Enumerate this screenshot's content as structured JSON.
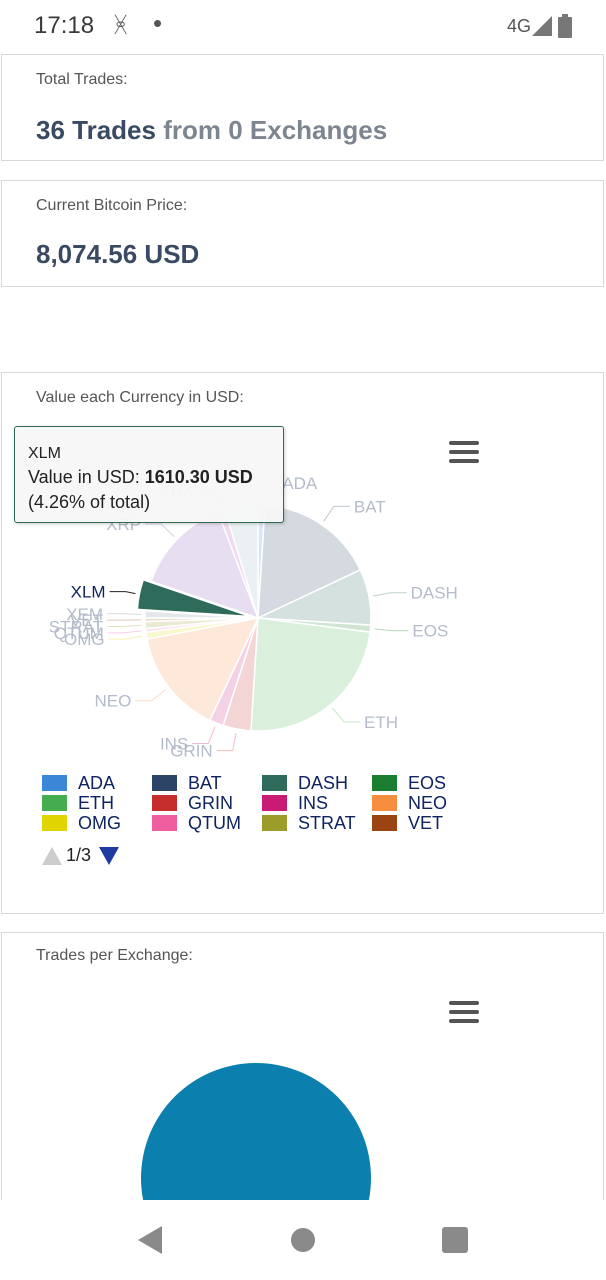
{
  "status_bar": {
    "time": "17:18",
    "network": "4G"
  },
  "total_trades": {
    "label": "Total Trades:",
    "count_text": "36 Trades",
    "exchanges_text": "from 0 Exchanges"
  },
  "bitcoin_price": {
    "label": "Current Bitcoin Price:",
    "value": "8,074.56 USD"
  },
  "currency_chart": {
    "label": "Value each Currency in USD:",
    "tooltip": {
      "title": "XLM",
      "value_prefix": "Value in USD: ",
      "value": "1610.30 USD",
      "percent": "(4.26% of total)"
    },
    "legend": [
      {
        "label": "ADA",
        "color": "#3b86d6"
      },
      {
        "label": "BAT",
        "color": "#2c4466"
      },
      {
        "label": "DASH",
        "color": "#2e6b5b"
      },
      {
        "label": "EOS",
        "color": "#1a7d2f"
      },
      {
        "label": "ETH",
        "color": "#45ad4f"
      },
      {
        "label": "GRIN",
        "color": "#c62d2d"
      },
      {
        "label": "INS",
        "color": "#c91b76"
      },
      {
        "label": "NEO",
        "color": "#f58e3f"
      },
      {
        "label": "OMG",
        "color": "#e0d500"
      },
      {
        "label": "QTUM",
        "color": "#ef5f9f"
      },
      {
        "label": "STRAT",
        "color": "#9c9c2b"
      },
      {
        "label": "VET",
        "color": "#9a4412"
      }
    ],
    "pager": "1/3"
  },
  "trades_exchange": {
    "label": "Trades per Exchange:"
  },
  "chart_data": [
    {
      "type": "pie",
      "title": "Value each Currency in USD:",
      "highlighted": "XLM",
      "series": [
        {
          "name": "ADA",
          "value": 1.0,
          "color": "#3b86d6"
        },
        {
          "name": "BAT",
          "value": 17.0,
          "color": "#2c4466"
        },
        {
          "name": "DASH",
          "value": 8.0,
          "color": "#2e6b5b"
        },
        {
          "name": "EOS",
          "value": 1.0,
          "color": "#1a7d2f"
        },
        {
          "name": "ETH",
          "value": 24.0,
          "color": "#45ad4f"
        },
        {
          "name": "GRIN",
          "value": 4.0,
          "color": "#c62d2d"
        },
        {
          "name": "INS",
          "value": 2.0,
          "color": "#c91b76"
        },
        {
          "name": "NEO",
          "value": 15.0,
          "color": "#f58e3f"
        },
        {
          "name": "OMG",
          "value": 1.0,
          "color": "#e0d500"
        },
        {
          "name": "QTUM",
          "value": 0.5,
          "color": "#ef5f9f"
        },
        {
          "name": "STRAT",
          "value": 1.0,
          "color": "#9c9c2b"
        },
        {
          "name": "VET",
          "value": 0.5,
          "color": "#9a4412"
        },
        {
          "name": "XEM",
          "value": 1.0,
          "color": "#7a8a9e"
        },
        {
          "name": "XLM",
          "value": 4.26,
          "color": "#2e6b5b"
        },
        {
          "name": "XRP",
          "value": 14.0,
          "color": "#8e5bb8"
        },
        {
          "name": "ZRX",
          "value": 1.0,
          "color": "#b347b3"
        },
        {
          "name": "",
          "value": 4.74,
          "color": "#9bb7c4"
        }
      ]
    },
    {
      "type": "pie",
      "title": "Trades per Exchange:",
      "series": [
        {
          "name": "",
          "value": 100,
          "color": "#0b7fad"
        }
      ]
    }
  ]
}
